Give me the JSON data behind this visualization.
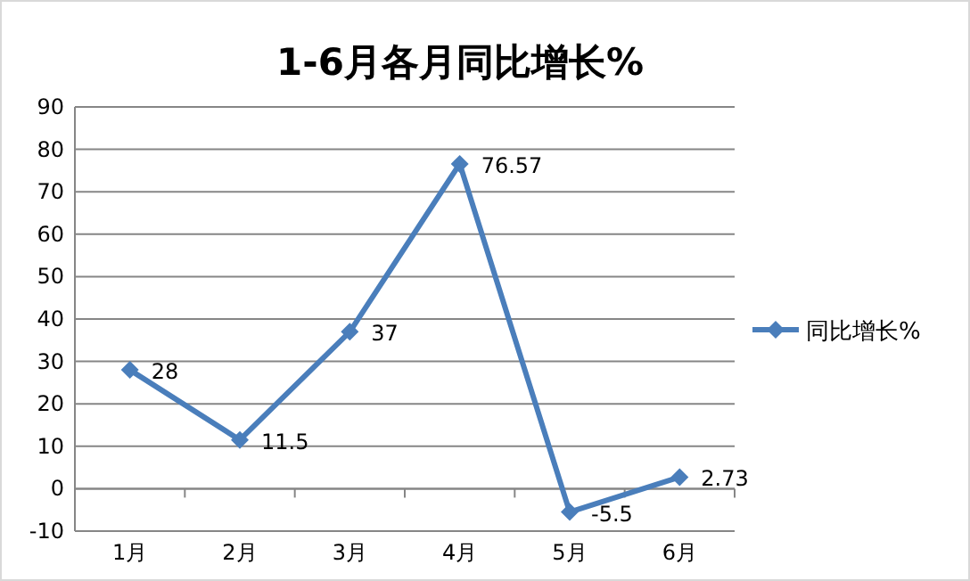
{
  "chart_data": {
    "type": "line",
    "title": "1-6月各月同比增长%",
    "categories": [
      "1月",
      "2月",
      "3月",
      "4月",
      "5月",
      "6月"
    ],
    "series": [
      {
        "name": "同比增长%",
        "color": "#4a7ebb",
        "values": [
          28,
          11.5,
          37,
          76.57,
          -5.5,
          2.73
        ]
      }
    ],
    "ylim": [
      -10,
      90
    ],
    "yticks": [
      -10,
      0,
      10,
      20,
      30,
      40,
      50,
      60,
      70,
      80,
      90
    ],
    "grid": "y",
    "legend": "right",
    "marker": "diamond",
    "data_labels": true
  }
}
